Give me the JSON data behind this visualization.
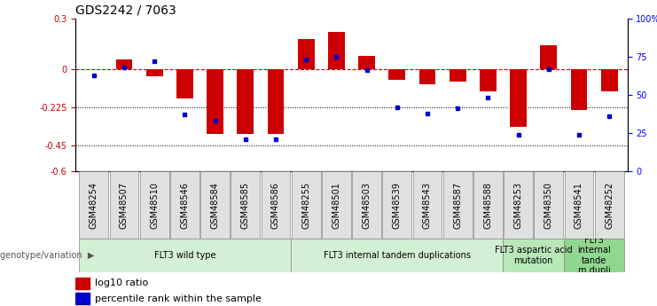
{
  "title": "GDS2242 / 7063",
  "samples": [
    "GSM48254",
    "GSM48507",
    "GSM48510",
    "GSM48546",
    "GSM48584",
    "GSM48585",
    "GSM48586",
    "GSM48255",
    "GSM48501",
    "GSM48503",
    "GSM48539",
    "GSM48543",
    "GSM48587",
    "GSM48588",
    "GSM48253",
    "GSM48350",
    "GSM48541",
    "GSM48252"
  ],
  "log10_ratio": [
    0.0,
    0.06,
    -0.04,
    -0.17,
    -0.38,
    -0.38,
    -0.38,
    0.18,
    0.22,
    0.08,
    -0.06,
    -0.09,
    -0.07,
    -0.13,
    -0.34,
    0.14,
    -0.24,
    -0.13
  ],
  "percentile_rank": [
    63,
    68,
    72,
    37,
    33,
    21,
    21,
    73,
    75,
    66,
    42,
    38,
    41,
    48,
    24,
    67,
    24,
    36
  ],
  "groups": [
    {
      "label": "FLT3 wild type",
      "start": 0,
      "end": 7,
      "color": "#d4f0d4"
    },
    {
      "label": "FLT3 internal tandem duplications",
      "start": 7,
      "end": 14,
      "color": "#d4f0d4"
    },
    {
      "label": "FLT3 aspartic acid\nmutation",
      "start": 14,
      "end": 16,
      "color": "#b8e8b8"
    },
    {
      "label": "FLT3\ninternal\ntande\nm dupli",
      "start": 16,
      "end": 18,
      "color": "#90d890"
    }
  ],
  "bar_color": "#cc0000",
  "dot_color": "#0000cc",
  "ylim_left": [
    -0.6,
    0.3
  ],
  "ylim_right": [
    0,
    100
  ],
  "yticks_left": [
    -0.6,
    -0.45,
    -0.225,
    0.0,
    0.3
  ],
  "yticks_right": [
    0,
    25,
    50,
    75,
    100
  ],
  "hline_y": 0.0,
  "dotted_lines": [
    -0.225,
    -0.45
  ],
  "bar_width": 0.55,
  "title_fontsize": 10,
  "tick_fontsize": 7,
  "label_fontsize": 7,
  "group_fontsize": 7,
  "legend_fontsize": 8
}
